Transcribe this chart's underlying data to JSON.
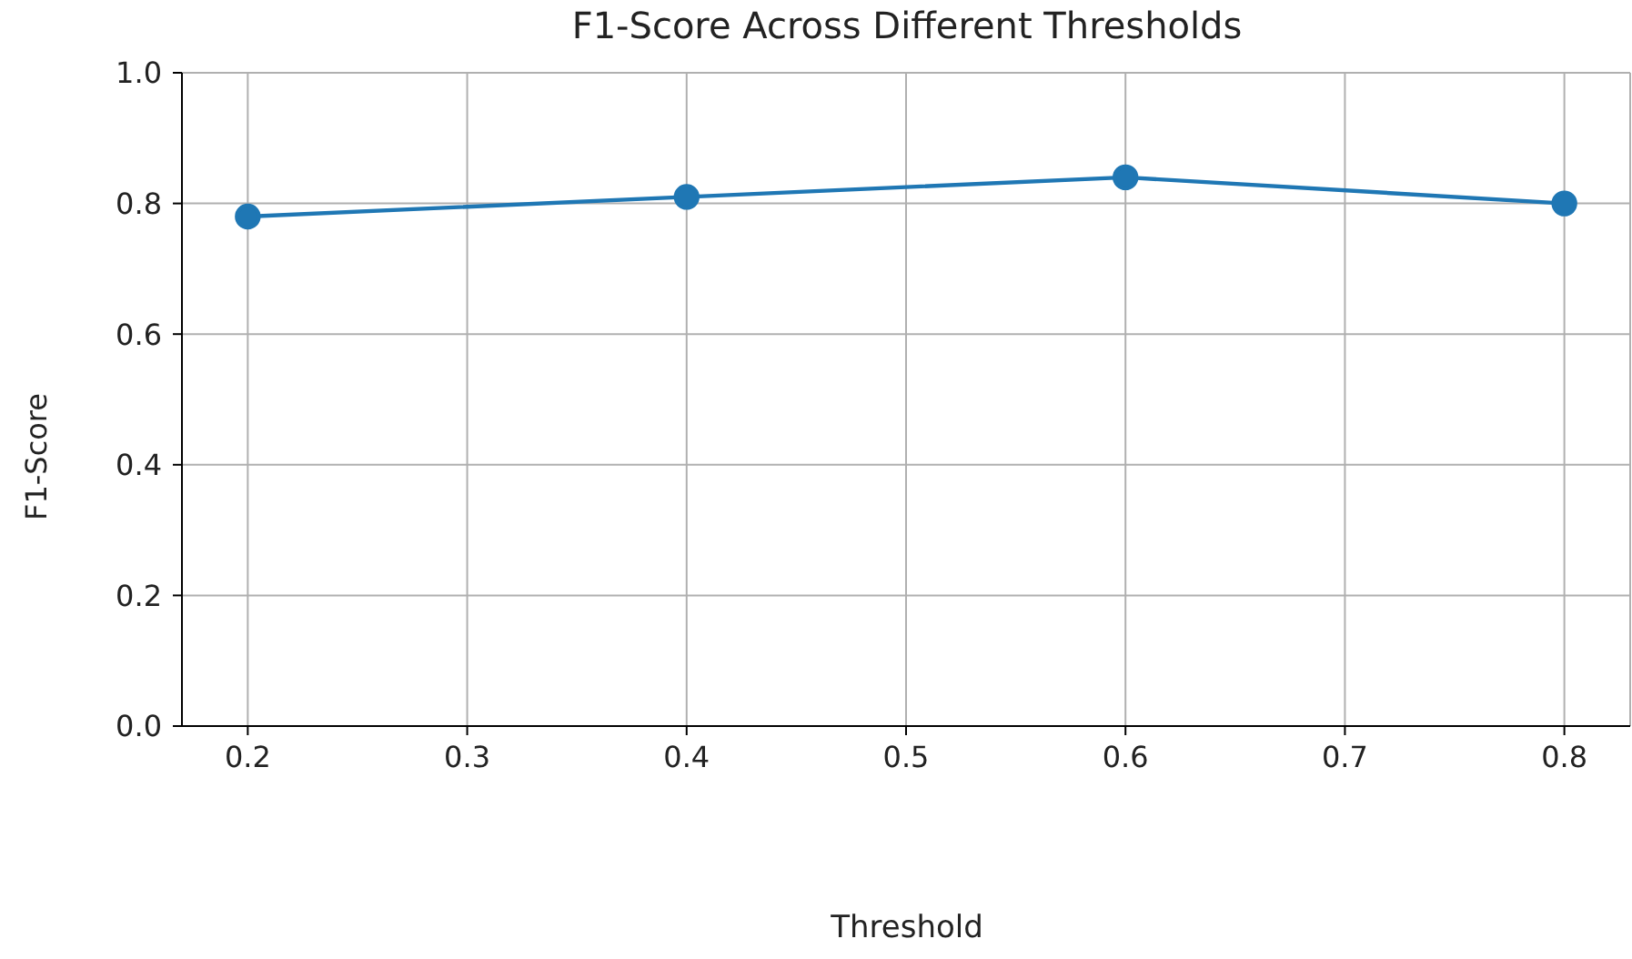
{
  "chart_data": {
    "type": "line",
    "title": "F1-Score Across Different Thresholds",
    "xlabel": "Threshold",
    "ylabel": "F1-Score",
    "x": [
      0.2,
      0.4,
      0.6,
      0.8
    ],
    "series": [
      {
        "color": "#1f77b4",
        "values": [
          0.78,
          0.81,
          0.84,
          0.8
        ]
      }
    ],
    "xlim": [
      0.17,
      0.83
    ],
    "xticks": [
      0.2,
      0.3,
      0.4,
      0.5,
      0.6,
      0.7,
      0.8
    ],
    "ylim": [
      0,
      1
    ],
    "yticks": [
      {
        "value": 0,
        "label": "0.0"
      },
      0.2,
      0.4,
      0.6,
      0.8,
      {
        "value": 1,
        "label": "1.0"
      }
    ],
    "grid": true,
    "marker": "circle",
    "line_style": "solid"
  }
}
